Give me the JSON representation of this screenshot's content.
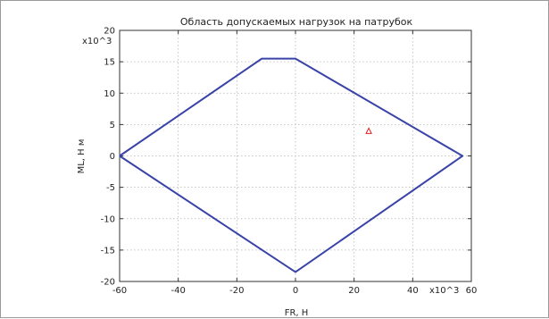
{
  "chart_data": {
    "type": "line",
    "title": "Область допускаемых нагрузок на патрубок",
    "xlabel": "FR, Н",
    "ylabel": "ML, Н м",
    "x_multiplier": "x10^3",
    "y_multiplier": "x10^3",
    "xlim": [
      -60,
      60
    ],
    "ylim": [
      -20,
      20
    ],
    "x_ticks": [
      -60,
      -40,
      -20,
      0,
      20,
      40,
      60
    ],
    "y_ticks": [
      -20,
      -15,
      -10,
      -5,
      0,
      5,
      10,
      15,
      20
    ],
    "grid": true,
    "series": [
      {
        "type": "line",
        "color": "#3a44a8",
        "points": [
          [
            -60,
            0
          ],
          [
            -11.5,
            15.5
          ],
          [
            0,
            15.5
          ],
          [
            57,
            0
          ],
          [
            0,
            -18.5
          ],
          [
            -60,
            0
          ]
        ]
      },
      {
        "type": "scatter",
        "marker": "triangle",
        "color": "#e02020",
        "points": [
          [
            25,
            4
          ]
        ]
      }
    ]
  }
}
